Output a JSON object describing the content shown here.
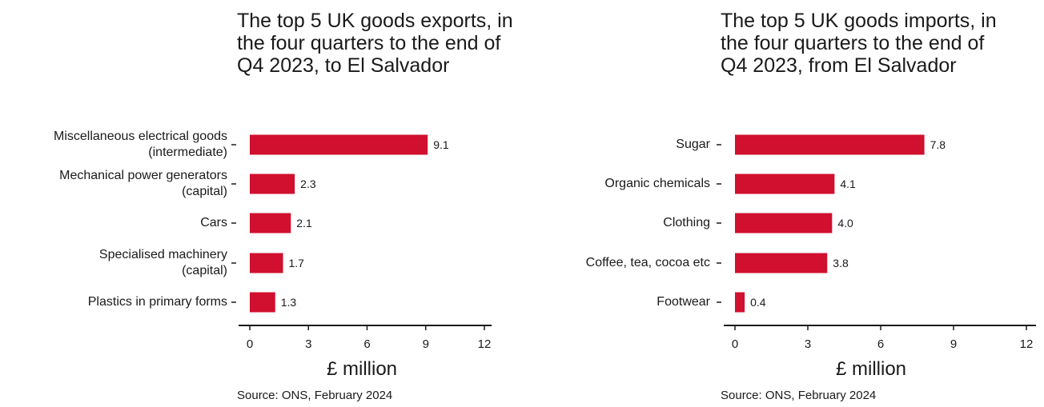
{
  "chart_data": [
    {
      "type": "bar",
      "orientation": "horizontal",
      "title": "The top 5 UK goods exports, in the four quarters to the end of Q4 2023, to El Salvador",
      "categories": [
        "Miscellaneous electrical goods\n(intermediate)",
        "Mechanical power generators\n(capital)",
        "Cars",
        "Specialised machinery\n(capital)",
        "Plastics in primary forms"
      ],
      "values": [
        9.1,
        2.3,
        2.1,
        1.7,
        1.3
      ],
      "value_labels": [
        "9.1",
        "2.3",
        "2.1",
        "1.7",
        "1.3"
      ],
      "xlabel": "£ million",
      "xlim": [
        0,
        12
      ],
      "xticks": [
        0,
        3,
        6,
        9,
        12
      ],
      "grid": false,
      "bar_color": "#d0102e",
      "source": "Source: ONS, February 2024"
    },
    {
      "type": "bar",
      "orientation": "horizontal",
      "title": "The top 5 UK goods imports, in the four quarters to the end of Q4 2023, from El Salvador",
      "categories": [
        "Sugar",
        "Organic chemicals",
        "Clothing",
        "Coffee, tea, cocoa etc",
        "Footwear"
      ],
      "values": [
        7.8,
        4.1,
        4.0,
        3.8,
        0.4
      ],
      "value_labels": [
        "7.8",
        "4.1",
        "4.0",
        "3.8",
        "0.4"
      ],
      "xlabel": "£ million",
      "xlim": [
        0,
        12
      ],
      "xticks": [
        0,
        3,
        6,
        9,
        12
      ],
      "grid": false,
      "bar_color": "#d0102e",
      "source": "Source: ONS, February 2024"
    }
  ]
}
